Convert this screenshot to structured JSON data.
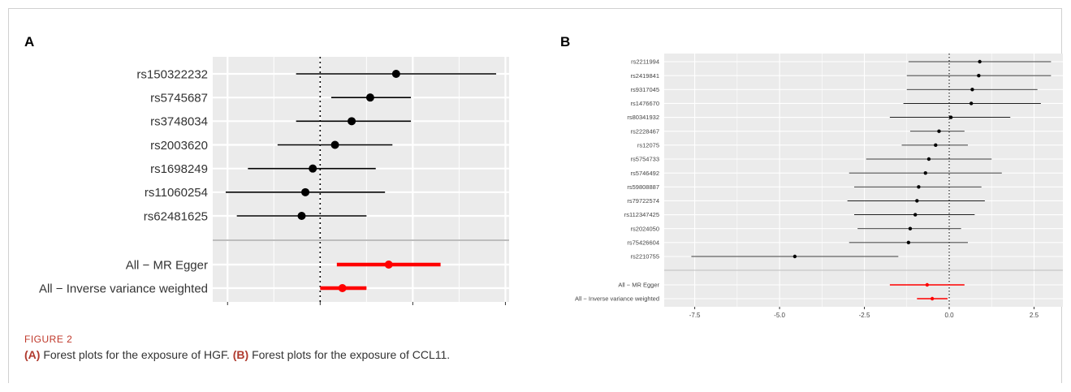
{
  "figure": {
    "panel_a_letter": "A",
    "panel_b_letter": "B",
    "label": "FIGURE 2",
    "caption_a_tag": "(A)",
    "caption_a_text": " Forest plots for the exposure of HGF. ",
    "caption_b_tag": "(B)",
    "caption_b_text": " Forest plots for the exposure of CCL11."
  },
  "colors": {
    "snp": "#000000",
    "summary": "#ff0000",
    "panel": "#ebebeb",
    "grid": "#ffffff",
    "separator": "#bdbdbd"
  },
  "chart_data": [
    {
      "type": "forest",
      "panel": "A",
      "xlim": [
        -2.9,
        5.1
      ],
      "xticks": [
        -2.5,
        0.0,
        2.5,
        5.0
      ],
      "xtick_labels": [
        "-2.5",
        "0.0",
        "2.5",
        "5.0"
      ],
      "reference_line": 0,
      "grid": true,
      "rows": [
        {
          "label": "rs150322232",
          "estimate": 2.05,
          "lower": -0.65,
          "upper": 4.75,
          "group": "snp"
        },
        {
          "label": "rs5745687",
          "estimate": 1.35,
          "lower": 0.3,
          "upper": 2.45,
          "group": "snp"
        },
        {
          "label": "rs3748034",
          "estimate": 0.85,
          "lower": -0.65,
          "upper": 2.45,
          "group": "snp"
        },
        {
          "label": "rs2003620",
          "estimate": 0.4,
          "lower": -1.15,
          "upper": 1.95,
          "group": "snp"
        },
        {
          "label": "rs1698249",
          "estimate": -0.2,
          "lower": -1.95,
          "upper": 1.5,
          "group": "snp"
        },
        {
          "label": "rs11060254",
          "estimate": -0.4,
          "lower": -2.55,
          "upper": 1.75,
          "group": "snp"
        },
        {
          "label": "rs62481625",
          "estimate": -0.5,
          "lower": -2.25,
          "upper": 1.25,
          "group": "snp"
        },
        {
          "label": "All − MR Egger",
          "estimate": 1.85,
          "lower": 0.45,
          "upper": 3.25,
          "group": "summary"
        },
        {
          "label": "All − Inverse variance weighted",
          "estimate": 0.6,
          "lower": 0.0,
          "upper": 1.25,
          "group": "summary"
        }
      ]
    },
    {
      "type": "forest",
      "panel": "B",
      "xlim": [
        -8.4,
        3.35
      ],
      "xticks": [
        -7.5,
        -5.0,
        -2.5,
        0.0,
        2.5
      ],
      "xtick_labels": [
        "-7.5",
        "-5.0",
        "-2.5",
        "0.0",
        "2.5"
      ],
      "reference_line": 0,
      "grid": true,
      "rows": [
        {
          "label": "rs2211994",
          "estimate": 0.9,
          "lower": -1.2,
          "upper": 3.0,
          "group": "snp"
        },
        {
          "label": "rs2419841",
          "estimate": 0.87,
          "lower": -1.25,
          "upper": 3.0,
          "group": "snp"
        },
        {
          "label": "rs9317045",
          "estimate": 0.68,
          "lower": -1.25,
          "upper": 2.6,
          "group": "snp"
        },
        {
          "label": "rs1476670",
          "estimate": 0.65,
          "lower": -1.35,
          "upper": 2.7,
          "group": "snp"
        },
        {
          "label": "rs80341932",
          "estimate": 0.05,
          "lower": -1.75,
          "upper": 1.8,
          "group": "snp"
        },
        {
          "label": "rs2228467",
          "estimate": -0.3,
          "lower": -1.15,
          "upper": 0.45,
          "group": "snp"
        },
        {
          "label": "rs12075",
          "estimate": -0.4,
          "lower": -1.4,
          "upper": 0.55,
          "group": "snp"
        },
        {
          "label": "rs5754733",
          "estimate": -0.6,
          "lower": -2.45,
          "upper": 1.25,
          "group": "snp"
        },
        {
          "label": "rs5746492",
          "estimate": -0.7,
          "lower": -2.95,
          "upper": 1.55,
          "group": "snp"
        },
        {
          "label": "rs59808887",
          "estimate": -0.9,
          "lower": -2.8,
          "upper": 0.95,
          "group": "snp"
        },
        {
          "label": "rs79722574",
          "estimate": -0.95,
          "lower": -3.0,
          "upper": 1.05,
          "group": "snp"
        },
        {
          "label": "rs112347425",
          "estimate": -1.0,
          "lower": -2.8,
          "upper": 0.75,
          "group": "snp"
        },
        {
          "label": "rs2024050",
          "estimate": -1.15,
          "lower": -2.7,
          "upper": 0.35,
          "group": "snp"
        },
        {
          "label": "rs75426604",
          "estimate": -1.2,
          "lower": -2.95,
          "upper": 0.55,
          "group": "snp"
        },
        {
          "label": "rs2210755",
          "estimate": -4.55,
          "lower": -7.6,
          "upper": -1.5,
          "group": "snp"
        },
        {
          "label": "All − MR Egger",
          "estimate": -0.65,
          "lower": -1.75,
          "upper": 0.45,
          "group": "summary"
        },
        {
          "label": "All − Inverse variance weighted",
          "estimate": -0.5,
          "lower": -0.95,
          "upper": -0.05,
          "group": "summary"
        }
      ]
    }
  ]
}
